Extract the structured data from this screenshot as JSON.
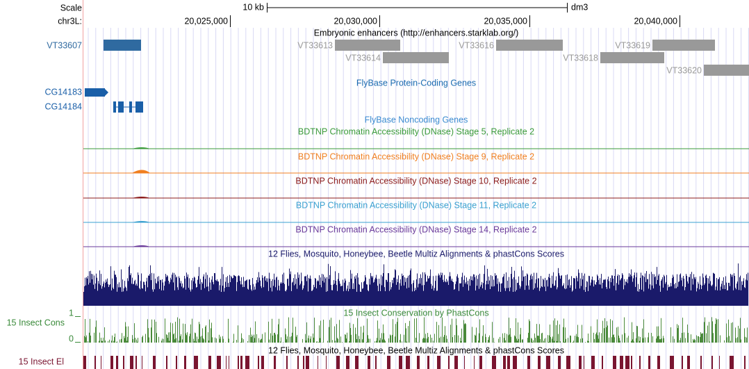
{
  "header": {
    "scale_label": "Scale",
    "scale_text": "10 kb",
    "assembly": "dm3",
    "chrom_label": "chr3L:",
    "positions": [
      "20,025,000",
      "20,030,000",
      "20,035,000",
      "20,040,000"
    ]
  },
  "tracks": {
    "enhancers": {
      "title": "Embryonic enhancers (http://enhancers.starklab.org/)",
      "items": [
        "VT33607",
        "VT33613",
        "VT33614",
        "VT33616",
        "VT33618",
        "VT33619",
        "VT33620"
      ]
    },
    "genes": {
      "title": "FlyBase Protein-Coding Genes",
      "items": [
        "CG14183",
        "CG14184"
      ]
    },
    "noncoding": {
      "title": "FlyBase Noncoding Genes"
    },
    "dnase": [
      "BDTNP Chromatin Accessibility (DNase) Stage 5, Replicate 2",
      "BDTNP Chromatin Accessibility (DNase) Stage 9, Replicate 2",
      "BDTNP Chromatin Accessibility (DNase) Stage 10, Replicate 2",
      "BDTNP Chromatin Accessibility (DNase) Stage 11, Replicate 2",
      "BDTNP Chromatin Accessibility (DNase) Stage 14, Replicate 2"
    ],
    "multiz": {
      "title": "12 Flies, Mosquito, Honeybee, Beetle Multiz Alignments & phastCons Scores"
    },
    "phastcons": {
      "title": "15 Insect Conservation by PhastCons",
      "label": "15 Insect Cons",
      "ymax": "1",
      "ymin": "0"
    },
    "elements": {
      "title": "12 Flies, Mosquito, Honeybee, Beetle Multiz Alignments & phastCons Scores",
      "label": "15 Insect El"
    }
  }
}
